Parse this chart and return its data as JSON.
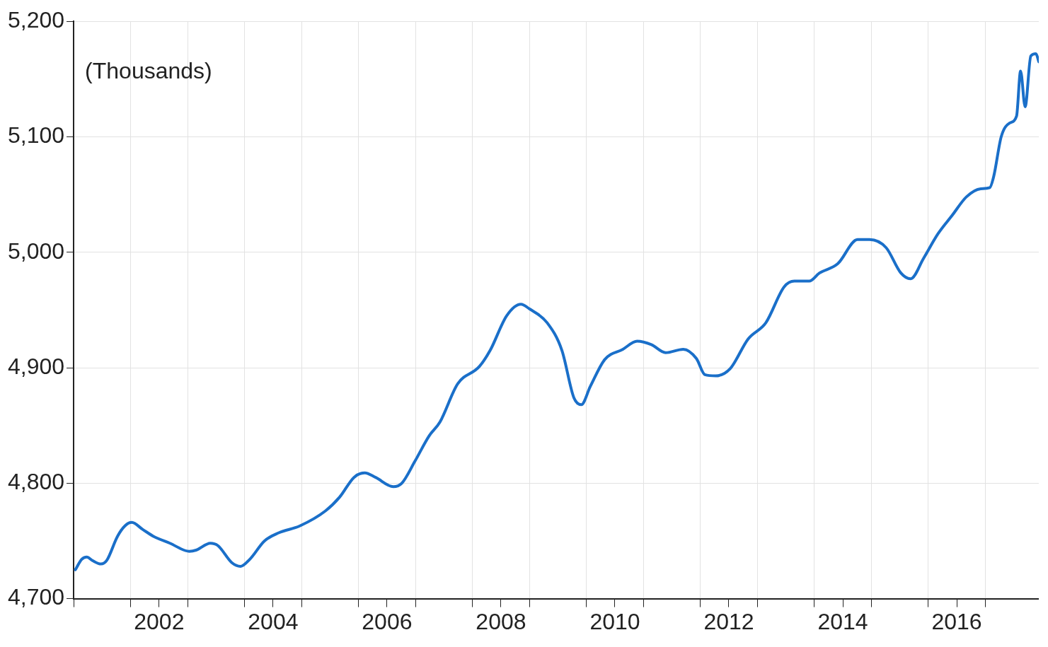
{
  "chart_data": {
    "type": "line",
    "annotations": [
      "(Thousands)"
    ],
    "x": [
      2001.03,
      2001.14,
      2001.23,
      2001.33,
      2001.48,
      2001.58,
      2001.77,
      2001.9,
      2002.02,
      2002.21,
      2002.4,
      2002.69,
      2003.03,
      2003.15,
      2003.4,
      2003.53,
      2003.78,
      2003.93,
      2004.09,
      2004.35,
      2004.6,
      2004.97,
      2005.42,
      2005.67,
      2005.92,
      2006.11,
      2006.3,
      2006.61,
      2006.76,
      2006.99,
      2007.24,
      2007.43,
      2007.74,
      2008.12,
      2008.31,
      2008.6,
      2008.85,
      2009.0,
      2009.31,
      2009.57,
      2009.78,
      2009.91,
      2010.07,
      2010.32,
      2010.64,
      2010.89,
      2011.14,
      2011.39,
      2011.7,
      2011.93,
      2012.08,
      2012.27,
      2012.52,
      2012.84,
      2013.15,
      2013.47,
      2013.65,
      2013.91,
      2014.09,
      2014.41,
      2014.76,
      2014.97,
      2015.26,
      2015.52,
      2015.69,
      2015.92,
      2016.17,
      2016.42,
      2016.67,
      2016.92,
      2017.08,
      2017.15,
      2017.28,
      2017.43,
      2017.55,
      2017.62,
      2017.7,
      2017.8,
      2017.89,
      2017.94
    ],
    "series": [
      {
        "color": "#1a6fc9",
        "values": [
          4725,
          4734,
          4736,
          4733,
          4730,
          4733,
          4754,
          4763,
          4766,
          4760,
          4754,
          4748,
          4741,
          4742,
          4748,
          4746,
          4731,
          4728,
          4734,
          4750,
          4757,
          4763,
          4776,
          4788,
          4805,
          4809,
          4805,
          4797,
          4800,
          4819,
          4841,
          4853,
          4886,
          4901,
          4915,
          4945,
          4955,
          4951,
          4939,
          4915,
          4874,
          4868,
          4884,
          4907,
          4916,
          4923,
          4920,
          4913,
          4916,
          4908,
          4894,
          4893,
          4899,
          4925,
          4939,
          4970,
          4975,
          4975,
          4982,
          4990,
          5011,
          5011,
          5004,
          4982,
          4977,
          4995,
          5016,
          5032,
          5048,
          5055,
          5056,
          5066,
          5100,
          5112,
          5118,
          5157,
          5126,
          5170,
          5172,
          5165
        ]
      }
    ],
    "xlim": [
      2001,
      2017.94
    ],
    "xticks": [
      {
        "value": 2001,
        "label": null
      },
      {
        "value": 2002,
        "label": null
      },
      {
        "value": 2002.5,
        "label": "2002"
      },
      {
        "value": 2003,
        "label": null
      },
      {
        "value": 2004,
        "label": null
      },
      {
        "value": 2004.5,
        "label": "2004"
      },
      {
        "value": 2005,
        "label": null
      },
      {
        "value": 2006,
        "label": null
      },
      {
        "value": 2006.5,
        "label": "2006"
      },
      {
        "value": 2007,
        "label": null
      },
      {
        "value": 2008,
        "label": null
      },
      {
        "value": 2008.5,
        "label": "2008"
      },
      {
        "value": 2009,
        "label": null
      },
      {
        "value": 2010,
        "label": null
      },
      {
        "value": 2010.5,
        "label": "2010"
      },
      {
        "value": 2011,
        "label": null
      },
      {
        "value": 2012,
        "label": null
      },
      {
        "value": 2012.5,
        "label": "2012"
      },
      {
        "value": 2013,
        "label": null
      },
      {
        "value": 2014,
        "label": null
      },
      {
        "value": 2014.5,
        "label": "2014"
      },
      {
        "value": 2015,
        "label": null
      },
      {
        "value": 2016,
        "label": null
      },
      {
        "value": 2016.5,
        "label": "2016"
      },
      {
        "value": 2017,
        "label": null
      }
    ],
    "ylim": [
      4700,
      5200
    ],
    "yticks": [
      {
        "value": 4700,
        "label": "4,700"
      },
      {
        "value": 4800,
        "label": "4,800"
      },
      {
        "value": 4900,
        "label": "4,900"
      },
      {
        "value": 5000,
        "label": "5,000"
      },
      {
        "value": 5100,
        "label": "5,100"
      },
      {
        "value": 5200,
        "label": "5,200"
      }
    ],
    "grid": true,
    "marker": "none",
    "line_style": "solid"
  }
}
